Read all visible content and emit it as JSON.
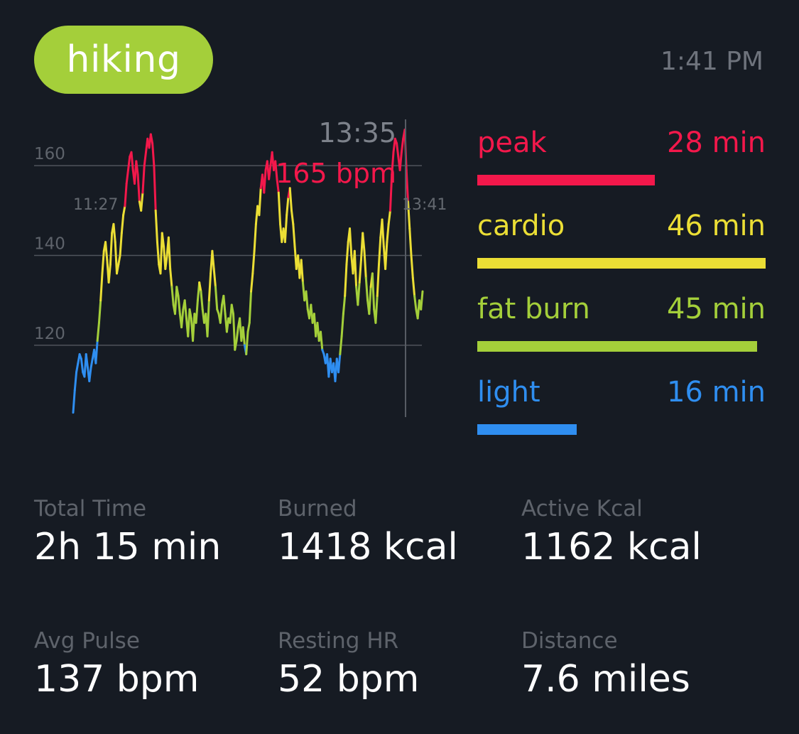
{
  "activity": {
    "label": "hiking",
    "color": "#a4cf3a"
  },
  "clock": "1:41 PM",
  "chart_data": {
    "type": "line",
    "title": "",
    "x_start_label": "11:27",
    "x_end_label": "13:41",
    "y_ticks": [
      160,
      140,
      120
    ],
    "ylim": [
      104,
      170
    ],
    "grid": true,
    "cursor": {
      "time": "13:35",
      "bpm_label": "165 bpm",
      "value": 165
    },
    "zone_colors": {
      "light": "#2f8ef0",
      "fat_burn": "#a4cf3a",
      "cardio": "#ebde35",
      "peak": "#f3184b"
    },
    "zone_thresholds": {
      "fat_burn": 120,
      "cardio": 133,
      "peak": 153
    },
    "series": [
      {
        "values": [
          105,
          110,
          114,
          116,
          118,
          117,
          114,
          113,
          118,
          115,
          112,
          115,
          117,
          119,
          116,
          121,
          125,
          130,
          136,
          141,
          143,
          139,
          134,
          138,
          145,
          147,
          143,
          136,
          138,
          140,
          145,
          149,
          151,
          156,
          159,
          162,
          163,
          159,
          156,
          161,
          158,
          152,
          150,
          154,
          160,
          163,
          166,
          164,
          167,
          165,
          160,
          150,
          143,
          138,
          136,
          145,
          142,
          137,
          140,
          144,
          137,
          133,
          129,
          127,
          133,
          131,
          127,
          124,
          128,
          130,
          126,
          122,
          128,
          126,
          121,
          127,
          125,
          130,
          134,
          132,
          128,
          125,
          127,
          122,
          130,
          136,
          141,
          137,
          133,
          128,
          127,
          125,
          129,
          131,
          127,
          123,
          126,
          125,
          129,
          127,
          119,
          121,
          124,
          126,
          121,
          124,
          120,
          118,
          123,
          125,
          132,
          136,
          141,
          147,
          151,
          149,
          155,
          158,
          154,
          159,
          161,
          157,
          160,
          163,
          159,
          161,
          157,
          154,
          147,
          143,
          146,
          143,
          149,
          153,
          155,
          150,
          147,
          142,
          137,
          140,
          135,
          139,
          134,
          130,
          132,
          128,
          126,
          129,
          125,
          127,
          122,
          125,
          121,
          123,
          119,
          118,
          116,
          118,
          113,
          117,
          114,
          116,
          112,
          117,
          114,
          118,
          122,
          127,
          131,
          138,
          143,
          146,
          140,
          136,
          141,
          133,
          129,
          134,
          139,
          145,
          141,
          135,
          130,
          127,
          133,
          136,
          128,
          125,
          131,
          138,
          144,
          148,
          142,
          137,
          143,
          147,
          150,
          158,
          163,
          166,
          165,
          162,
          159,
          163,
          166,
          168,
          159,
          152,
          146,
          140,
          135,
          131,
          128,
          126,
          130,
          128,
          132
        ]
      }
    ]
  },
  "zones": [
    {
      "key": "peak",
      "label": "peak",
      "value": "28 min",
      "color": "#f3184b",
      "fraction": 0.615
    },
    {
      "key": "cardio",
      "label": "cardio",
      "value": "46 min",
      "color": "#ebde35",
      "fraction": 1.0
    },
    {
      "key": "fat_burn",
      "label": "fat burn",
      "value": "45 min",
      "color": "#a4cf3a",
      "fraction": 0.97
    },
    {
      "key": "light",
      "label": "light",
      "value": "16 min",
      "color": "#2f8ef0",
      "fraction": 0.345
    }
  ],
  "stats": [
    {
      "label": "Total Time",
      "value": "2h 15 min"
    },
    {
      "label": "Burned",
      "value": "1418 kcal"
    },
    {
      "label": "Active Kcal",
      "value": "1162 kcal"
    },
    {
      "label": "Avg Pulse",
      "value": "137 bpm"
    },
    {
      "label": "Resting HR",
      "value": "52 bpm"
    },
    {
      "label": "Distance",
      "value": "7.6 miles"
    }
  ]
}
